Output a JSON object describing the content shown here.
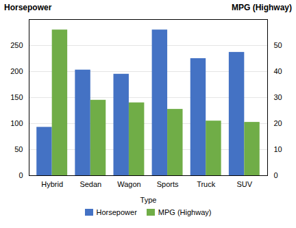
{
  "chart_data": {
    "type": "bar",
    "xlabel": "Type",
    "ylabel": "Horsepower",
    "y2label": "MPG (Highway)",
    "categories": [
      "Hybrid",
      "Sedan",
      "Wagon",
      "Sports",
      "Truck",
      "SUV"
    ],
    "series": [
      {
        "name": "Horsepower",
        "color": "#4472C4",
        "values": [
          93,
          203,
          195,
          280,
          225,
          237
        ]
      },
      {
        "name": "MPG (Highway)",
        "color": "#70AD47",
        "values": [
          56,
          29,
          28,
          25.5,
          21,
          20.5
        ],
        "axis": "y2"
      }
    ],
    "ylim": [
      0,
      300
    ],
    "yticks": [
      0,
      50,
      100,
      150,
      200,
      250
    ],
    "y2lim": [
      0,
      60
    ],
    "y2ticks": [
      0,
      10,
      20,
      30,
      40,
      50
    ],
    "grid": true,
    "legend": "bottom"
  }
}
